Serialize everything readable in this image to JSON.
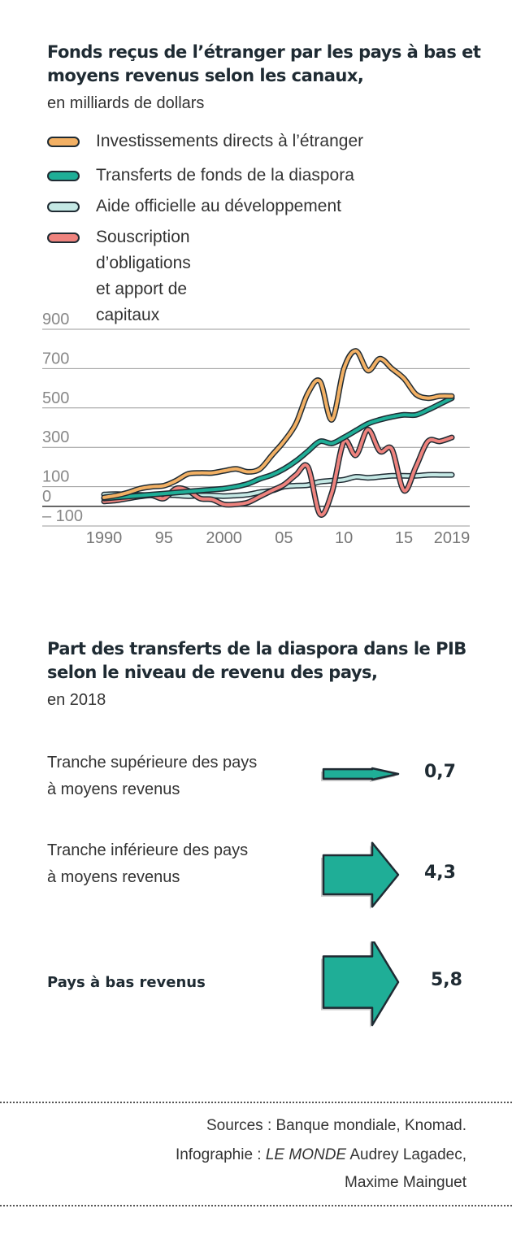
{
  "chart_title": "Fonds reçus de l’étranger par les pays à bas et moyens revenus selon les canaux,",
  "chart_subtitle": "en milliards de dollars",
  "legend": [
    {
      "label": "Investissements directs à l’étranger",
      "color": "#f2b064"
    },
    {
      "label": "Transferts de fonds de la diaspora",
      "color": "#1fae97"
    },
    {
      "label": "Aide officielle au développement",
      "color": "#c4e8e4"
    },
    {
      "label": "Souscription d’obligations\net apport de capitaux",
      "color": "#ee837e"
    }
  ],
  "chart_data": [
    {
      "type": "line",
      "title": "Fonds reçus de l’étranger par les pays à bas et moyens revenus selon les canaux,",
      "subtitle": "en milliards de dollars",
      "ylim": [
        -100,
        900
      ],
      "y_ticks": [
        900,
        700,
        500,
        300,
        100,
        0,
        -100
      ],
      "y_tick_labels": [
        "900",
        "700",
        "500",
        "300",
        "100",
        "0",
        "– 100"
      ],
      "x_ticks": [
        1990,
        1995,
        2000,
        2005,
        2010,
        2015,
        2019
      ],
      "x_tick_labels": [
        "1990",
        "95",
        "2000",
        "05",
        "10",
        "15",
        "2019"
      ],
      "grid": true,
      "series": [
        {
          "name": "Investissements directs à l’étranger",
          "color": "#f2b064",
          "x": [
            1990,
            1991,
            1992,
            1993,
            1994,
            1995,
            1996,
            1997,
            1998,
            1999,
            2000,
            2001,
            2002,
            2003,
            2004,
            2005,
            2006,
            2007,
            2008,
            2009,
            2010,
            2011,
            2012,
            2013,
            2014,
            2015,
            2016,
            2017,
            2018,
            2019
          ],
          "y": [
            45,
            55,
            70,
            90,
            100,
            105,
            130,
            165,
            170,
            170,
            180,
            190,
            175,
            190,
            260,
            330,
            420,
            575,
            635,
            440,
            700,
            790,
            690,
            750,
            700,
            650,
            570,
            550,
            560,
            560
          ]
        },
        {
          "name": "Transferts de fonds de la diaspora",
          "color": "#1fae97",
          "x": [
            1990,
            1991,
            1992,
            1993,
            1994,
            1995,
            1996,
            1997,
            1998,
            1999,
            2000,
            2001,
            2002,
            2003,
            2004,
            2005,
            2006,
            2007,
            2008,
            2009,
            2010,
            2011,
            2012,
            2013,
            2014,
            2015,
            2016,
            2017,
            2018,
            2019
          ],
          "y": [
            40,
            45,
            50,
            55,
            60,
            65,
            70,
            75,
            80,
            85,
            90,
            100,
            115,
            140,
            160,
            190,
            230,
            280,
            330,
            320,
            350,
            385,
            420,
            440,
            455,
            465,
            465,
            490,
            520,
            550
          ]
        },
        {
          "name": "Aide officielle au développement",
          "color": "#c4e8e4",
          "x": [
            1990,
            1991,
            1992,
            1993,
            1994,
            1995,
            1996,
            1997,
            1998,
            1999,
            2000,
            2001,
            2002,
            2003,
            2004,
            2005,
            2006,
            2007,
            2008,
            2009,
            2010,
            2011,
            2012,
            2013,
            2014,
            2015,
            2016,
            2017,
            2018,
            2019
          ],
          "y": [
            60,
            62,
            60,
            58,
            57,
            58,
            56,
            52,
            55,
            55,
            52,
            55,
            60,
            72,
            80,
            100,
            105,
            108,
            125,
            130,
            135,
            150,
            145,
            150,
            155,
            155,
            155,
            160,
            160,
            160
          ]
        },
        {
          "name": "Souscription d’obligations et apport de capitaux",
          "color": "#ee837e",
          "x": [
            1990,
            1991,
            1992,
            1993,
            1994,
            1995,
            1996,
            1997,
            1998,
            1999,
            2000,
            2001,
            2002,
            2003,
            2004,
            2005,
            2006,
            2007,
            2008,
            2009,
            2010,
            2011,
            2012,
            2013,
            2014,
            2015,
            2016,
            2017,
            2018,
            2019
          ],
          "y": [
            25,
            30,
            40,
            50,
            55,
            40,
            90,
            80,
            40,
            35,
            10,
            10,
            20,
            50,
            80,
            110,
            160,
            200,
            -40,
            70,
            330,
            260,
            390,
            280,
            290,
            80,
            200,
            330,
            330,
            350
          ]
        }
      ]
    },
    {
      "type": "bar",
      "title": "Part des transferts de la diaspora dans le PIB selon le niveau de revenu des pays,",
      "subtitle": "en 2018",
      "categories": [
        "Tranche supérieure des pays\nà moyens revenus",
        "Tranche inférieure des pays\nà moyens revenus",
        "Pays à bas revenus"
      ],
      "values": [
        0.7,
        4.3,
        5.8
      ],
      "value_labels": [
        "0,7",
        "4,3",
        "5,8"
      ],
      "color": "#1fae97"
    }
  ],
  "bar_title": "Part des transferts de la diaspora dans le PIB selon le niveau de revenu des pays,",
  "bar_subtitle": "en 2018",
  "bar_rows": [
    {
      "label": "Tranche supérieure des pays\nà moyens revenus",
      "value_label": "0,7",
      "value": 0.7,
      "bold": false
    },
    {
      "label": "Tranche inférieure des pays\nà moyens revenus",
      "value_label": "4,3",
      "value": 4.3,
      "bold": false
    },
    {
      "label": "Pays à bas revenus",
      "value_label": "5,8",
      "value": 5.8,
      "bold": true
    }
  ],
  "sources": "Sources : Banque mondiale, Knomad.",
  "infographie_prefix": "Infographie : ",
  "infographie_brand": "LE MONDE",
  "infographie_authors": " Audrey Lagadec,",
  "infographie_authors2": "Maxime Mainguet"
}
